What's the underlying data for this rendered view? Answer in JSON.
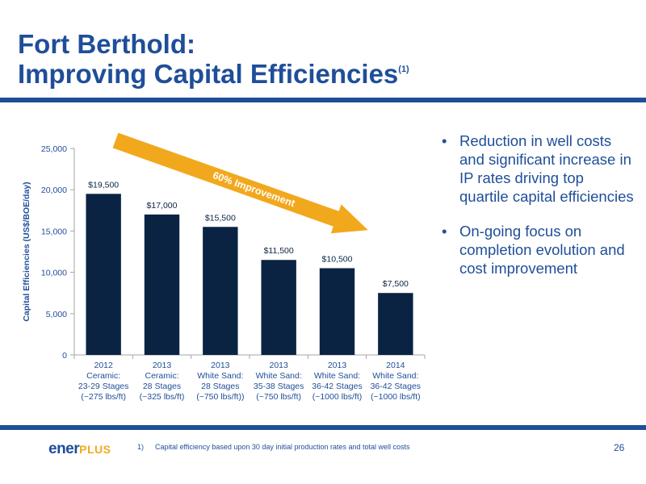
{
  "slide": {
    "title_line1": "Fort Berthold:",
    "title_line2": "Improving Capital Efficiencies",
    "title_sup": "(1)",
    "page_number": "26"
  },
  "bullets": [
    "Reduction in well costs and significant increase in IP rates driving top quartile capital efficiencies",
    "On-going focus on completion evolution and cost improvement"
  ],
  "footer": {
    "logo_main": "ener",
    "logo_plus": "PLUS",
    "footnote_num": "1)",
    "footnote_text": "Capital efficiency based upon 30 day initial production rates and total well costs"
  },
  "chart_data": {
    "type": "bar",
    "ylabel": "Capital Efficiencies (US$/BOE/day)",
    "ylim": [
      0,
      25000
    ],
    "yticks": [
      0,
      5000,
      10000,
      15000,
      20000,
      25000
    ],
    "ytick_labels": [
      "0",
      "5,000",
      "10,000",
      "15,000",
      "20,000",
      "25,000"
    ],
    "categories": [
      [
        "2012",
        "Ceramic:",
        "23-29 Stages",
        "(~275 lbs/ft)"
      ],
      [
        "2013",
        "Ceramic:",
        "28 Stages",
        "(~325 lbs/ft)"
      ],
      [
        "2013",
        "White Sand:",
        "28 Stages",
        "(~750 lbs/ft))"
      ],
      [
        "2013",
        "White Sand:",
        "35-38 Stages",
        "(~750 lbs/ft)"
      ],
      [
        "2013",
        "White Sand:",
        "36-42 Stages",
        "(~1000 lbs/ft)"
      ],
      [
        "2014",
        "White Sand:",
        "36-42 Stages",
        "(~1000 lbs/ft)"
      ]
    ],
    "values": [
      19500,
      17000,
      15500,
      11500,
      10500,
      7500
    ],
    "data_labels": [
      "$19,500",
      "$17,000",
      "$15,500",
      "$11,500",
      "$10,500",
      "$7,500"
    ],
    "annotation": "60% Improvement",
    "colors": {
      "bar": "#0b2343",
      "arrow": "#f2a81d",
      "axis_text": "#1f4e99"
    }
  }
}
